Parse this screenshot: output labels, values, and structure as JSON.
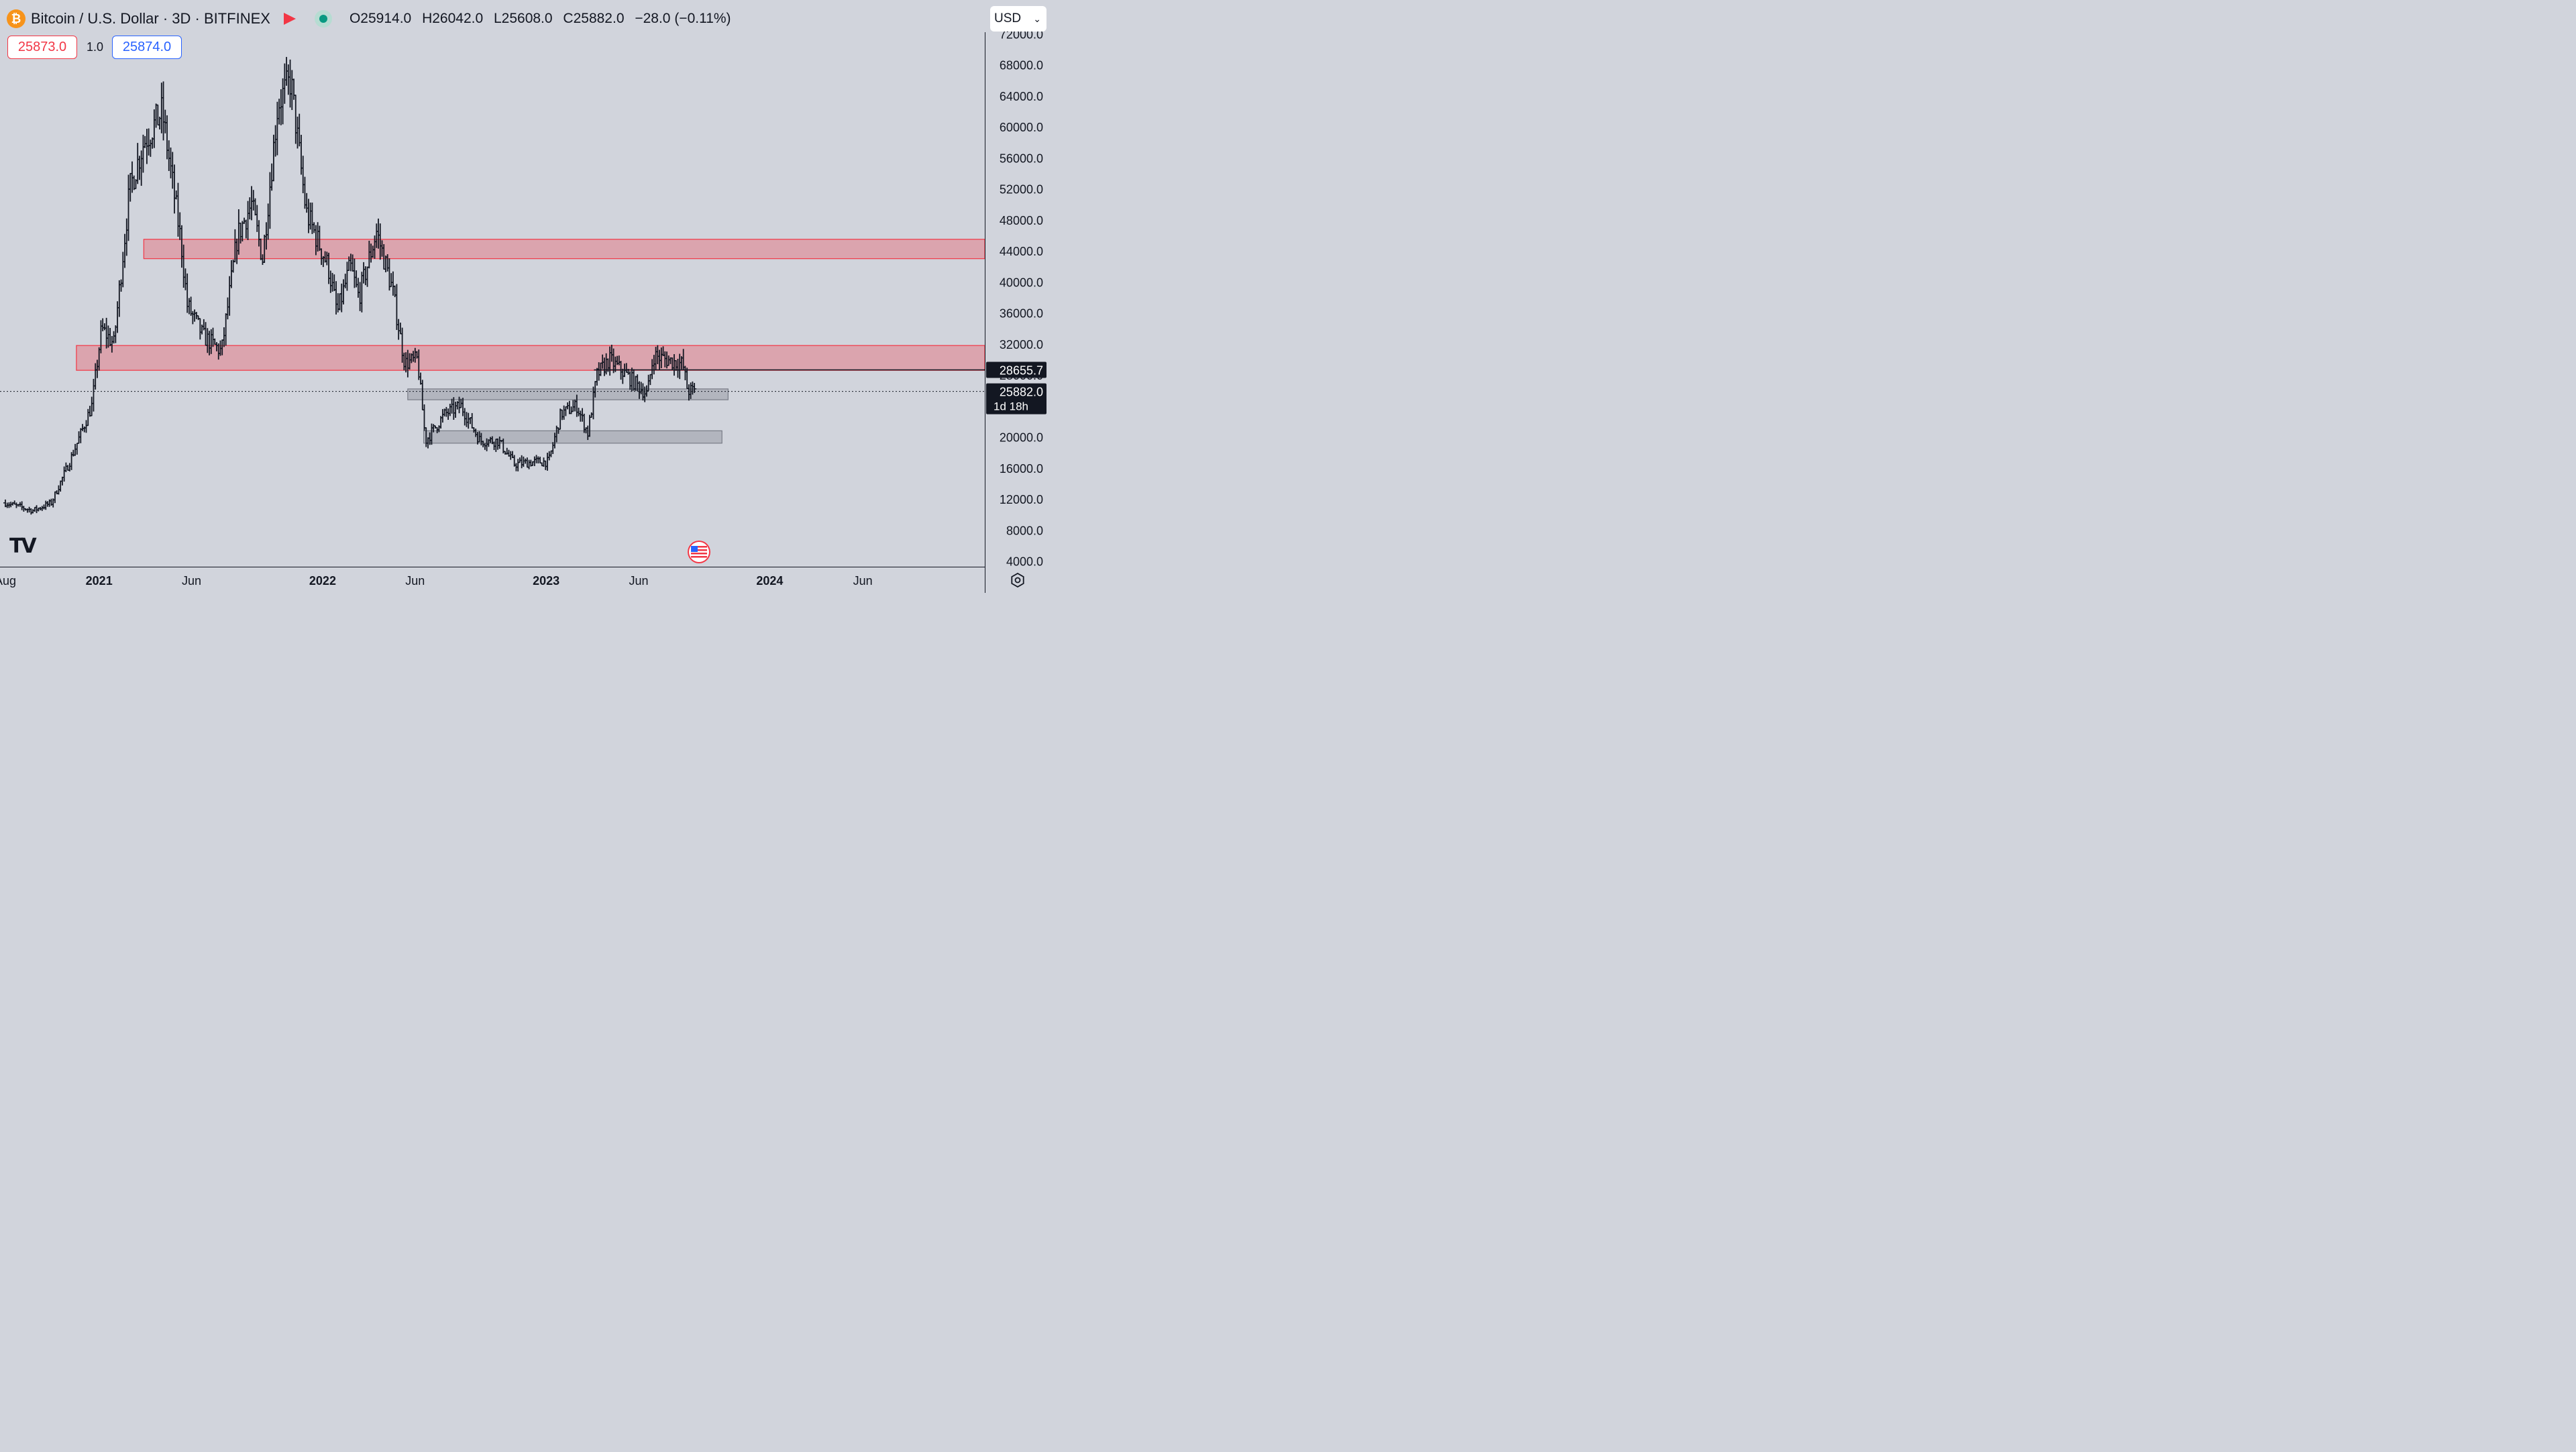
{
  "header": {
    "coin_symbol": "₿",
    "title": "Bitcoin / U.S. Dollar · 3D · BITFINEX",
    "ohlc": {
      "o": "O25914.0",
      "h": "H26042.0",
      "l": "L25608.0",
      "c": "C25882.0",
      "change": "−28.0 (−0.11%)"
    },
    "currency": "USD"
  },
  "trade": {
    "sell": "25873.0",
    "spread": "1.0",
    "buy": "25874.0"
  },
  "labels": {
    "level_line": "28655.7",
    "current_price": "25882.0",
    "countdown": "1d 18h"
  },
  "colors": {
    "background": "#d1d4dc",
    "resistance_zone": "#f23645",
    "support_zone": "#9598a1",
    "bars": "#131722"
  },
  "chart_data": {
    "type": "ohlc-bar",
    "symbol": "BTCUSD",
    "exchange": "BITFINEX",
    "interval": "3D",
    "y_axis": {
      "ticks": [
        "4000.0",
        "8000.0",
        "12000.0",
        "16000.0",
        "20000.0",
        "24000.0",
        "28000.0",
        "32000.0",
        "36000.0",
        "40000.0",
        "44000.0",
        "48000.0",
        "52000.0",
        "56000.0",
        "60000.0",
        "64000.0",
        "68000.0",
        "72000.0"
      ],
      "range": [
        4000,
        72000
      ],
      "scale": "linear"
    },
    "x_axis": {
      "labels": [
        {
          "text": "Aug",
          "date": "2020-08-01",
          "bold": false
        },
        {
          "text": "2021",
          "date": "2021-01-01",
          "bold": true
        },
        {
          "text": "Jun",
          "date": "2021-06-01",
          "bold": false
        },
        {
          "text": "2022",
          "date": "2022-01-01",
          "bold": true
        },
        {
          "text": "Jun",
          "date": "2022-06-01",
          "bold": false
        },
        {
          "text": "2023",
          "date": "2023-01-01",
          "bold": true
        },
        {
          "text": "Jun",
          "date": "2023-06-01",
          "bold": false
        },
        {
          "text": "2024",
          "date": "2024-01-01",
          "bold": true
        },
        {
          "text": "Jun",
          "date": "2024-06-01",
          "bold": false
        }
      ]
    },
    "price_path": [
      {
        "date": "2020-08-01",
        "price": 11500
      },
      {
        "date": "2020-09-15",
        "price": 10500
      },
      {
        "date": "2020-10-15",
        "price": 11500
      },
      {
        "date": "2020-11-15",
        "price": 17000
      },
      {
        "date": "2020-12-20",
        "price": 24000
      },
      {
        "date": "2021-01-05",
        "price": 34000
      },
      {
        "date": "2021-01-25",
        "price": 32000
      },
      {
        "date": "2021-02-20",
        "price": 52000
      },
      {
        "date": "2021-03-15",
        "price": 58000
      },
      {
        "date": "2021-04-14",
        "price": 62000
      },
      {
        "date": "2021-05-15",
        "price": 45000
      },
      {
        "date": "2021-05-25",
        "price": 37000
      },
      {
        "date": "2021-06-20",
        "price": 33000
      },
      {
        "date": "2021-07-20",
        "price": 31000
      },
      {
        "date": "2021-08-15",
        "price": 46000
      },
      {
        "date": "2021-09-07",
        "price": 50000
      },
      {
        "date": "2021-09-25",
        "price": 43000
      },
      {
        "date": "2021-10-20",
        "price": 63000
      },
      {
        "date": "2021-11-10",
        "price": 66000
      },
      {
        "date": "2021-12-05",
        "price": 49000
      },
      {
        "date": "2022-01-10",
        "price": 42000
      },
      {
        "date": "2022-01-25",
        "price": 36000
      },
      {
        "date": "2022-02-15",
        "price": 42000
      },
      {
        "date": "2022-03-01",
        "price": 38000
      },
      {
        "date": "2022-03-30",
        "price": 46500
      },
      {
        "date": "2022-04-25",
        "price": 39000
      },
      {
        "date": "2022-05-15",
        "price": 29500
      },
      {
        "date": "2022-06-05",
        "price": 30000
      },
      {
        "date": "2022-06-18",
        "price": 19500
      },
      {
        "date": "2022-07-20",
        "price": 23000
      },
      {
        "date": "2022-08-15",
        "price": 24000
      },
      {
        "date": "2022-09-15",
        "price": 19500
      },
      {
        "date": "2022-10-15",
        "price": 19500
      },
      {
        "date": "2022-11-10",
        "price": 16500
      },
      {
        "date": "2022-12-15",
        "price": 16800
      },
      {
        "date": "2023-01-05",
        "price": 16800
      },
      {
        "date": "2023-01-25",
        "price": 23000
      },
      {
        "date": "2023-02-20",
        "price": 24000
      },
      {
        "date": "2023-03-10",
        "price": 20500
      },
      {
        "date": "2023-03-25",
        "price": 28000
      },
      {
        "date": "2023-04-14",
        "price": 30000
      },
      {
        "date": "2023-05-05",
        "price": 28500
      },
      {
        "date": "2023-06-15",
        "price": 25500
      },
      {
        "date": "2023-06-25",
        "price": 30500
      },
      {
        "date": "2023-07-20",
        "price": 29900
      },
      {
        "date": "2023-08-12",
        "price": 29400
      },
      {
        "date": "2023-08-20",
        "price": 26000
      },
      {
        "date": "2023-09-02",
        "price": 25882
      }
    ],
    "zones": [
      {
        "kind": "resistance",
        "low": 43000,
        "high": 45500,
        "from": "2021-03-15",
        "to": "right-edge"
      },
      {
        "kind": "resistance",
        "low": 28600,
        "high": 31800,
        "from": "2020-11-25",
        "to": "right-edge"
      },
      {
        "kind": "support",
        "low": 24800,
        "high": 26200,
        "from": "2022-05-20",
        "to": "2023-10-25"
      },
      {
        "kind": "support",
        "low": 19200,
        "high": 20800,
        "from": "2022-06-15",
        "to": "2023-10-15"
      }
    ],
    "horizontal_line": {
      "price": 28655.7,
      "from": "2023-03-20"
    },
    "current_price": {
      "value": 25882.0,
      "countdown": "1d 18h"
    }
  }
}
